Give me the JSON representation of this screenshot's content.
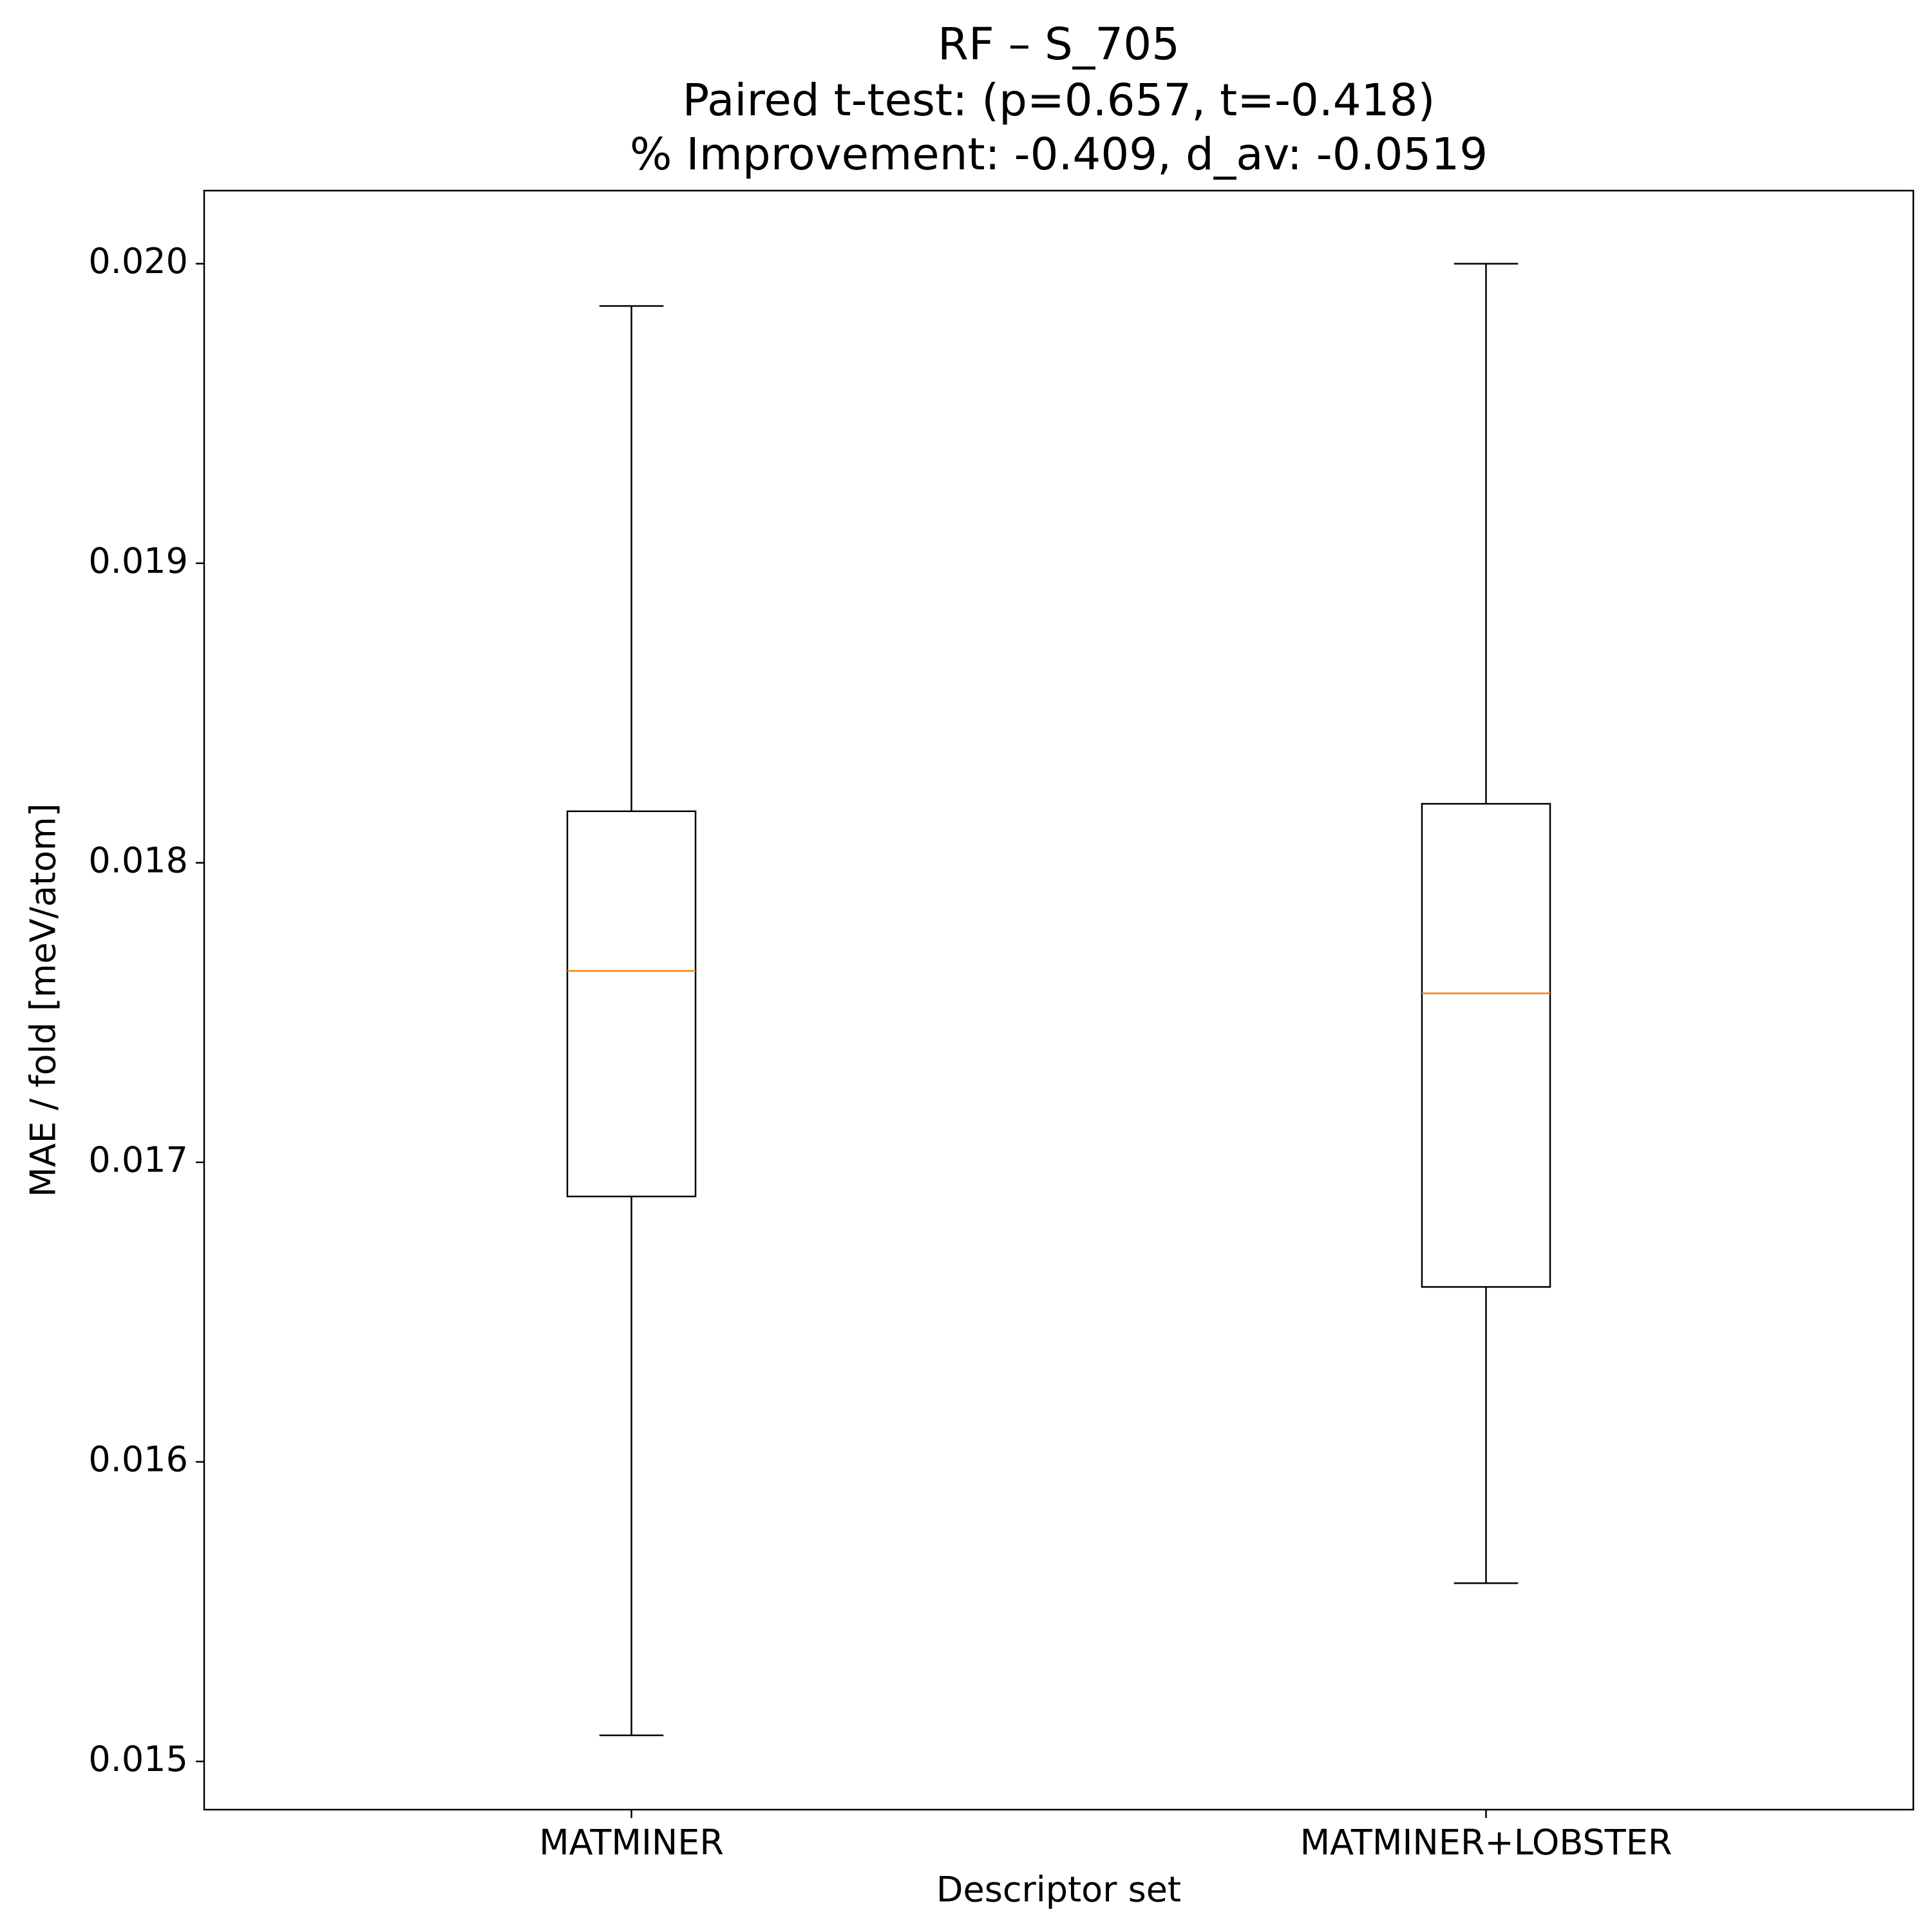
{
  "chart_data": {
    "type": "box",
    "title": "RF – S_705",
    "subtitle": [
      "Paired t-test: (p=0.657, t=-0.418)",
      "% Improvement: -0.409, d_av: -0.0519"
    ],
    "x_label": "Descriptor set",
    "y_label": "MAE / fold [meV/atom]",
    "categories": [
      "MATMINER",
      "MATMINER+LOBSTER"
    ],
    "boxes": [
      {
        "whislo": 0.015087,
        "q1": 0.016886,
        "med": 0.017639,
        "q3": 0.018172,
        "whishi": 0.019859
      },
      {
        "whislo": 0.015595,
        "q1": 0.016584,
        "med": 0.017564,
        "q3": 0.018197,
        "whishi": 0.02
      }
    ],
    "color": "#000000",
    "median_color": "#ff7f0e",
    "ylim": [
      0.014839,
      0.020244
    ],
    "yticks": [
      0.015,
      0.016,
      0.017,
      0.018,
      0.019,
      {
        "value": 0.02,
        "label": "0.020"
      }
    ],
    "grid": false
  }
}
